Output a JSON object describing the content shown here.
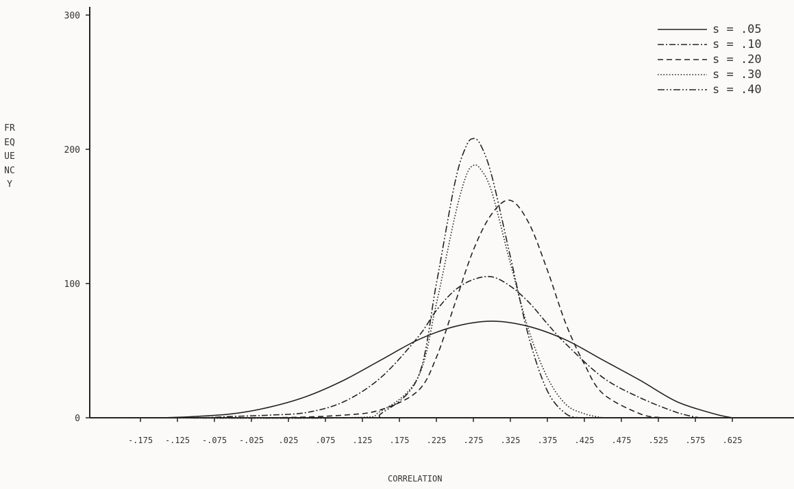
{
  "chart_data": {
    "type": "line",
    "title": "",
    "xlabel": "CORRELATION",
    "ylabel": "FREQUENCY",
    "ylabel_printed": "FREQUENCY",
    "x_ticks": [
      "-.175",
      "-.125",
      "-.075",
      "-.025",
      ".025",
      ".075",
      ".125",
      ".175",
      ".225",
      ".275",
      ".325",
      ".375",
      ".425",
      ".475",
      ".525",
      ".575",
      ".625"
    ],
    "x_tick_values": [
      -0.175,
      -0.125,
      -0.075,
      -0.025,
      0.025,
      0.075,
      0.125,
      0.175,
      0.225,
      0.275,
      0.325,
      0.375,
      0.425,
      0.475,
      0.525,
      0.575,
      0.625
    ],
    "y_ticks": [
      "0",
      "100",
      "200",
      "300"
    ],
    "y_tick_values": [
      0,
      100,
      200,
      300
    ],
    "xlim": [
      -0.2,
      0.66
    ],
    "ylim": [
      0,
      300
    ],
    "grid": false,
    "legend_position": "top-right",
    "series": [
      {
        "name": "s = .05",
        "style": "solid",
        "x": [
          -0.2,
          -0.15,
          -0.1,
          -0.05,
          0,
          0.05,
          0.1,
          0.15,
          0.2,
          0.25,
          0.3,
          0.35,
          0.4,
          0.45,
          0.5,
          0.55,
          0.6,
          0.625
        ],
        "y": [
          0,
          0,
          1,
          3,
          8,
          16,
          28,
          43,
          58,
          68,
          72,
          68,
          58,
          43,
          28,
          12,
          3,
          0
        ]
      },
      {
        "name": "s = .10",
        "style": "dash-x",
        "x": [
          -0.2,
          -0.1,
          -0.05,
          0,
          0.05,
          0.1,
          0.15,
          0.2,
          0.225,
          0.25,
          0.275,
          0.3,
          0.325,
          0.35,
          0.375,
          0.4,
          0.45,
          0.5,
          0.55,
          0.58
        ],
        "y": [
          0,
          0,
          1,
          2,
          4,
          12,
          30,
          60,
          80,
          95,
          103,
          105,
          98,
          86,
          70,
          55,
          30,
          15,
          4,
          0
        ]
      },
      {
        "name": "s = .20",
        "style": "dashed",
        "x": [
          -0.2,
          0,
          0.1,
          0.15,
          0.2,
          0.225,
          0.25,
          0.275,
          0.3,
          0.325,
          0.35,
          0.375,
          0.4,
          0.425,
          0.45,
          0.5,
          0.53
        ],
        "y": [
          0,
          0,
          2,
          6,
          20,
          45,
          85,
          125,
          152,
          162,
          145,
          110,
          70,
          40,
          18,
          3,
          0
        ]
      },
      {
        "name": "s = .30",
        "style": "dotted",
        "x": [
          -0.2,
          0.1,
          0.15,
          0.2,
          0.225,
          0.25,
          0.265,
          0.275,
          0.285,
          0.3,
          0.325,
          0.35,
          0.375,
          0.4,
          0.425,
          0.45
        ],
        "y": [
          0,
          0,
          5,
          30,
          85,
          150,
          180,
          188,
          185,
          168,
          115,
          65,
          30,
          10,
          3,
          0
        ]
      },
      {
        "name": "s = .40",
        "style": "dash-dot",
        "x": [
          -0.2,
          0.125,
          0.15,
          0.2,
          0.225,
          0.25,
          0.265,
          0.275,
          0.285,
          0.3,
          0.325,
          0.35,
          0.375,
          0.4,
          0.42
        ],
        "y": [
          0,
          0,
          3,
          30,
          100,
          175,
          202,
          208,
          203,
          180,
          120,
          60,
          20,
          3,
          0
        ]
      }
    ]
  }
}
